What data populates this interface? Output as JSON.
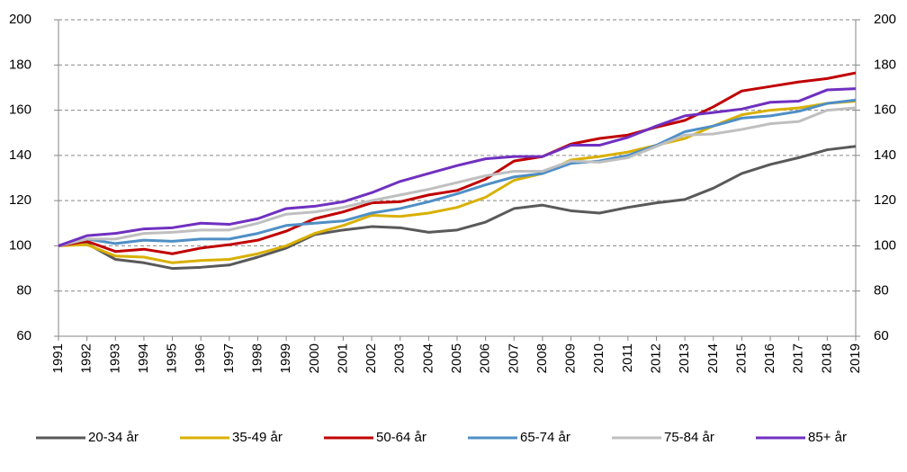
{
  "chart_data": {
    "type": "line",
    "categories": [
      "1991",
      "1992",
      "1993",
      "1994",
      "1995",
      "1996",
      "1997",
      "1998",
      "1999",
      "2000",
      "2001",
      "2002",
      "2003",
      "2004",
      "2005",
      "2006",
      "2007",
      "2008",
      "2009",
      "2010",
      "2011",
      "2012",
      "2013",
      "2014",
      "2015",
      "2016",
      "2017",
      "2018",
      "2019"
    ],
    "series": [
      {
        "name": "20-34 år",
        "color": "#595959",
        "values": [
          100,
          101,
          94,
          92.5,
          90,
          90.5,
          91.5,
          95,
          99,
          105,
          107,
          108.5,
          108,
          106,
          107,
          110.5,
          116.5,
          118,
          115.5,
          114.5,
          117,
          119,
          120.5,
          125.5,
          132,
          136,
          139,
          142.5,
          144
        ]
      },
      {
        "name": "35-49 år",
        "color": "#d9b000",
        "values": [
          100,
          100.5,
          95.5,
          95,
          92.5,
          93.5,
          94,
          96.5,
          100,
          105.5,
          109,
          113.5,
          113,
          114.5,
          117,
          121.5,
          129,
          132,
          138,
          139.5,
          141.5,
          144.5,
          147.5,
          153,
          158,
          160,
          161,
          163,
          164
        ]
      },
      {
        "name": "50-64 år",
        "color": "#c00000",
        "values": [
          100,
          102,
          97.5,
          98.5,
          96.5,
          99,
          100.5,
          102.5,
          106.5,
          112,
          115,
          119,
          119.5,
          122.5,
          124.5,
          129.5,
          137.5,
          139.5,
          145,
          147.5,
          149,
          152.5,
          155.5,
          161.5,
          168.5,
          170.5,
          172.5,
          174,
          176.5
        ]
      },
      {
        "name": "65-74 år",
        "color": "#4f8fc6",
        "values": [
          100,
          103,
          101,
          102.5,
          102,
          103,
          103,
          105.5,
          109,
          110,
          111,
          114.5,
          116.5,
          119.5,
          123,
          127,
          130.5,
          132,
          136.5,
          137.5,
          140,
          144.5,
          150.5,
          153,
          156.5,
          157.5,
          159.5,
          163,
          164.5
        ]
      },
      {
        "name": "75-84 år",
        "color": "#bfbfbf",
        "values": [
          100,
          103,
          103,
          105.5,
          106,
          107,
          107,
          110,
          114,
          115,
          117,
          120,
          122.5,
          125,
          128,
          131,
          133,
          133,
          137.5,
          137,
          139,
          144,
          149,
          149.5,
          151.5,
          154,
          155,
          160,
          161
        ]
      },
      {
        "name": "85+ år",
        "color": "#7030c0",
        "values": [
          100,
          104.5,
          105.5,
          107.5,
          108,
          110,
          109.5,
          112,
          116.5,
          117.5,
          119.5,
          123.5,
          128.5,
          132,
          135.5,
          138.5,
          139.5,
          139.5,
          144.5,
          144.5,
          148,
          153,
          157.5,
          159,
          160.5,
          163.5,
          164,
          169,
          169.5
        ]
      }
    ],
    "ylim": [
      60,
      200
    ],
    "yticks": [
      60,
      80,
      100,
      120,
      140,
      160,
      180,
      200
    ],
    "y2lim": [
      60,
      200
    ],
    "y2ticks": [
      60,
      80,
      100,
      120,
      140,
      160,
      180,
      200
    ],
    "grid": true,
    "legend": "bottom"
  }
}
